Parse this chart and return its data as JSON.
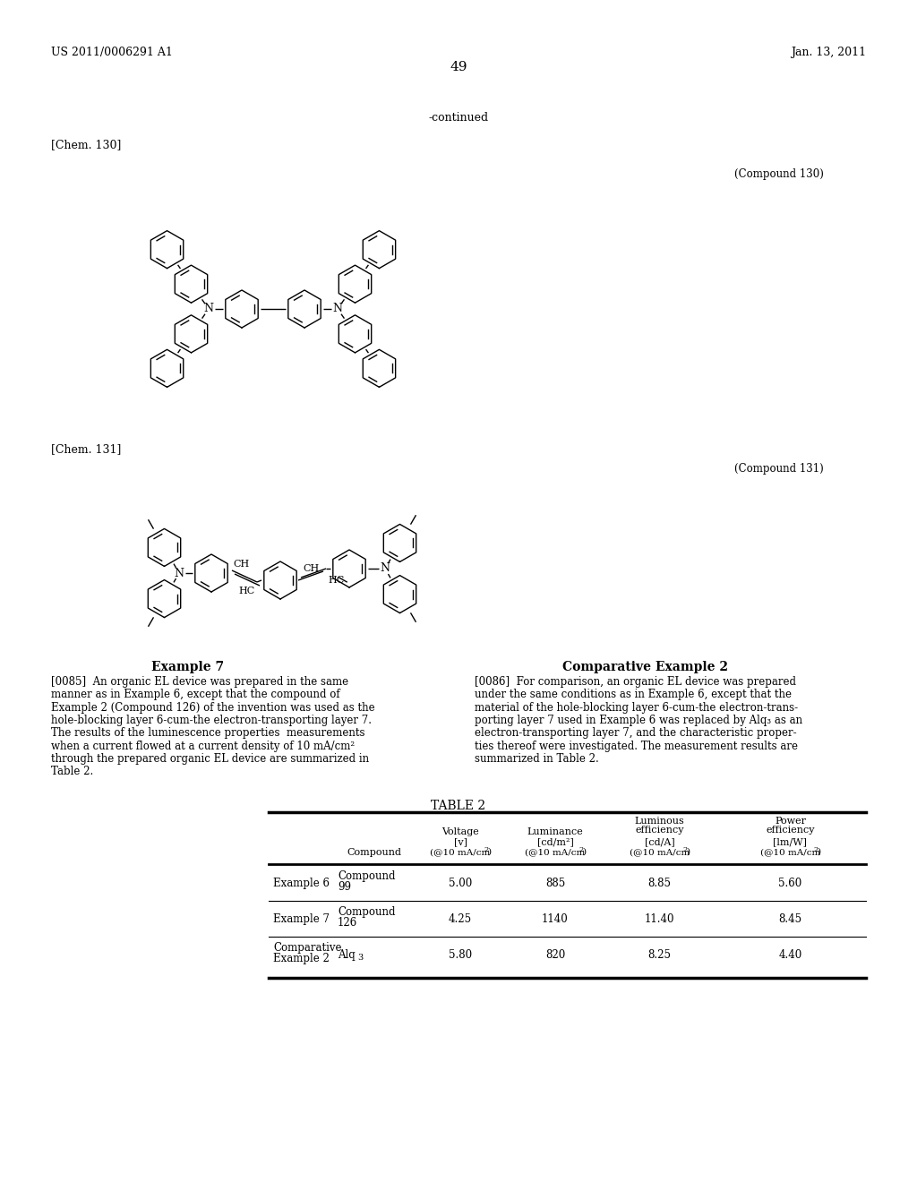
{
  "page_header_left": "US 2011/0006291 A1",
  "page_header_right": "Jan. 13, 2011",
  "page_number": "49",
  "continued_label": "-continued",
  "chem130_label": "[Chem. 130]",
  "chem131_label": "[Chem. 131]",
  "compound130_label": "(Compound 130)",
  "compound131_label": "(Compound 131)",
  "example7_title": "Example 7",
  "comp_example2_title": "Comparative Example 2",
  "example7_lines": [
    "[0085]  An organic EL device was prepared in the same",
    "manner as in Example 6, except that the compound of",
    "Example 2 (Compound 126) of the invention was used as the",
    "hole-blocking layer 6-cum-the electron-transporting layer 7.",
    "The results of the luminescence properties  measurements",
    "when a current flowed at a current density of 10 mA/cm²",
    "through the prepared organic EL device are summarized in",
    "Table 2."
  ],
  "comp2_lines": [
    "[0086]  For comparison, an organic EL device was prepared",
    "under the same conditions as in Example 6, except that the",
    "material of the hole-blocking layer 6-cum-the electron-trans-",
    "porting layer 7 used in Example 6 was replaced by Alq₃ as an",
    "electron-transporting layer 7, and the characteristic proper-",
    "ties thereof were investigated. The measurement results are",
    "summarized in Table 2."
  ],
  "table_title": "TABLE 2",
  "table_rows": [
    [
      "Example 6",
      "Compound\n99",
      "5.00",
      "885",
      "8.85",
      "5.60"
    ],
    [
      "Example 7",
      "Compound\n126",
      "4.25",
      "1140",
      "11.40",
      "8.45"
    ],
    [
      "Comparative\nExample 2",
      "Alq3",
      "5.80",
      "820",
      "8.25",
      "4.40"
    ]
  ]
}
